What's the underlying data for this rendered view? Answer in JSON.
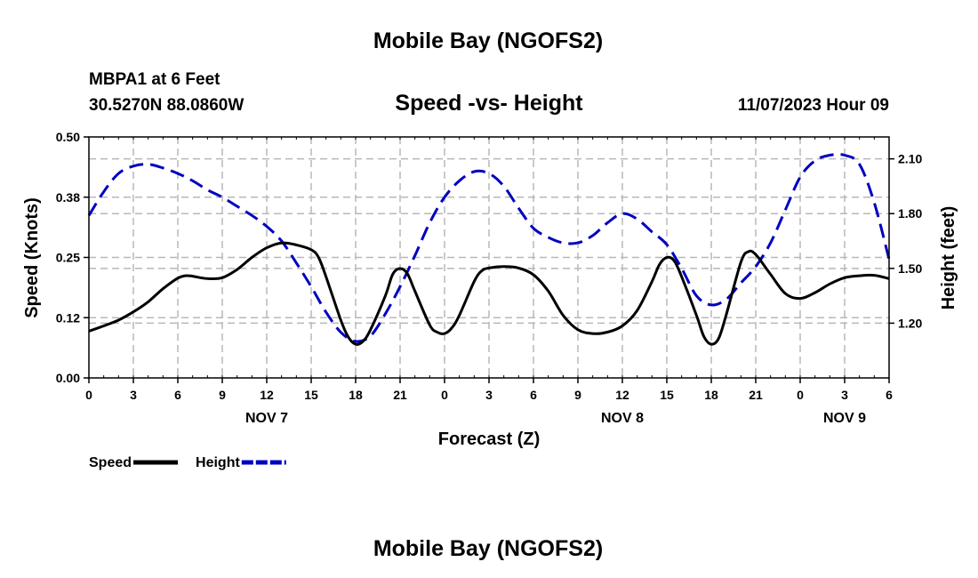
{
  "page": {
    "title_top": "Mobile Bay (NGOFS2)",
    "title_bottom": "Mobile Bay (NGOFS2)",
    "station": "MBPA1 at 6 Feet",
    "coordinates": "30.5270N  88.0860W",
    "subtitle": "Speed -vs- Height",
    "datetime": "11/07/2023 Hour 09"
  },
  "chart_data": {
    "type": "line",
    "title": "Speed -vs- Height",
    "xlabel": "Forecast (Z)",
    "ylabel_left": "Speed (Knots)",
    "ylabel_right": "Height (feet)",
    "x_unit": "hours since NOV 7 00Z",
    "xlim": [
      0,
      54
    ],
    "ylim_left": [
      0.0,
      0.5
    ],
    "ylim_right": [
      0.9,
      2.22
    ],
    "x_ticks": [
      {
        "x": 0,
        "label": "0"
      },
      {
        "x": 3,
        "label": "3"
      },
      {
        "x": 6,
        "label": "6"
      },
      {
        "x": 9,
        "label": "9"
      },
      {
        "x": 12,
        "label": "12"
      },
      {
        "x": 15,
        "label": "15"
      },
      {
        "x": 18,
        "label": "18"
      },
      {
        "x": 21,
        "label": "21"
      },
      {
        "x": 24,
        "label": "0"
      },
      {
        "x": 27,
        "label": "3"
      },
      {
        "x": 30,
        "label": "6"
      },
      {
        "x": 33,
        "label": "9"
      },
      {
        "x": 36,
        "label": "12"
      },
      {
        "x": 39,
        "label": "15"
      },
      {
        "x": 42,
        "label": "18"
      },
      {
        "x": 45,
        "label": "21"
      },
      {
        "x": 48,
        "label": "0"
      },
      {
        "x": 51,
        "label": "3"
      },
      {
        "x": 54,
        "label": "6"
      }
    ],
    "date_labels": [
      {
        "x": 12,
        "label": "NOV 7"
      },
      {
        "x": 36,
        "label": "NOV 8"
      },
      {
        "x": 51,
        "label": "NOV 9"
      }
    ],
    "y_ticks_left": [
      {
        "v": 0.0,
        "label": "0.00"
      },
      {
        "v": 0.125,
        "label": "0.12"
      },
      {
        "v": 0.25,
        "label": "0.25"
      },
      {
        "v": 0.375,
        "label": "0.38"
      },
      {
        "v": 0.5,
        "label": "0.50"
      }
    ],
    "y_ticks_right": [
      {
        "v": 1.2,
        "label": "1.20"
      },
      {
        "v": 1.5,
        "label": "1.50"
      },
      {
        "v": 1.8,
        "label": "1.80"
      },
      {
        "v": 2.1,
        "label": "2.10"
      }
    ],
    "grid": true,
    "legend_position": "bottom-left",
    "series": [
      {
        "name": "Speed",
        "axis": "left",
        "color": "#000000",
        "dash": "solid",
        "points": [
          [
            0,
            0.097
          ],
          [
            1,
            0.108
          ],
          [
            2,
            0.12
          ],
          [
            3,
            0.137
          ],
          [
            4,
            0.158
          ],
          [
            5,
            0.185
          ],
          [
            6,
            0.207
          ],
          [
            6.5,
            0.212
          ],
          [
            7,
            0.211
          ],
          [
            8,
            0.206
          ],
          [
            9,
            0.208
          ],
          [
            10,
            0.225
          ],
          [
            11,
            0.25
          ],
          [
            12,
            0.27
          ],
          [
            13,
            0.28
          ],
          [
            14,
            0.276
          ],
          [
            15,
            0.266
          ],
          [
            15.5,
            0.25
          ],
          [
            16,
            0.21
          ],
          [
            17,
            0.12
          ],
          [
            17.5,
            0.085
          ],
          [
            18,
            0.07
          ],
          [
            18.5,
            0.076
          ],
          [
            19,
            0.1
          ],
          [
            20,
            0.17
          ],
          [
            20.5,
            0.215
          ],
          [
            21,
            0.227
          ],
          [
            21.5,
            0.216
          ],
          [
            22,
            0.18
          ],
          [
            23,
            0.11
          ],
          [
            23.5,
            0.095
          ],
          [
            24,
            0.092
          ],
          [
            24.5,
            0.104
          ],
          [
            25,
            0.13
          ],
          [
            26,
            0.2
          ],
          [
            26.5,
            0.222
          ],
          [
            27,
            0.228
          ],
          [
            28,
            0.231
          ],
          [
            29,
            0.228
          ],
          [
            30,
            0.214
          ],
          [
            31,
            0.18
          ],
          [
            32,
            0.13
          ],
          [
            33,
            0.1
          ],
          [
            34,
            0.092
          ],
          [
            35,
            0.095
          ],
          [
            36,
            0.108
          ],
          [
            37,
            0.14
          ],
          [
            38,
            0.2
          ],
          [
            38.5,
            0.235
          ],
          [
            39,
            0.25
          ],
          [
            39.5,
            0.243
          ],
          [
            40,
            0.21
          ],
          [
            41,
            0.13
          ],
          [
            41.5,
            0.086
          ],
          [
            42,
            0.07
          ],
          [
            42.5,
            0.082
          ],
          [
            43,
            0.13
          ],
          [
            44,
            0.24
          ],
          [
            44.5,
            0.262
          ],
          [
            45,
            0.256
          ],
          [
            46,
            0.215
          ],
          [
            47,
            0.175
          ],
          [
            48,
            0.165
          ],
          [
            49,
            0.177
          ],
          [
            50,
            0.195
          ],
          [
            51,
            0.208
          ],
          [
            52,
            0.212
          ],
          [
            53,
            0.213
          ],
          [
            54,
            0.206
          ]
        ]
      },
      {
        "name": "Height",
        "axis": "right",
        "color": "#0000c0",
        "dash": "dashed",
        "points": [
          [
            0,
            1.79
          ],
          [
            1,
            1.92
          ],
          [
            2,
            2.02
          ],
          [
            3,
            2.06
          ],
          [
            4,
            2.07
          ],
          [
            5,
            2.05
          ],
          [
            6,
            2.02
          ],
          [
            7,
            1.98
          ],
          [
            8,
            1.93
          ],
          [
            9,
            1.89
          ],
          [
            10,
            1.84
          ],
          [
            11,
            1.79
          ],
          [
            12,
            1.73
          ],
          [
            13,
            1.65
          ],
          [
            14,
            1.53
          ],
          [
            15,
            1.4
          ],
          [
            16,
            1.26
          ],
          [
            17,
            1.15
          ],
          [
            18,
            1.1
          ],
          [
            19,
            1.13
          ],
          [
            20,
            1.25
          ],
          [
            21,
            1.4
          ],
          [
            22,
            1.57
          ],
          [
            23,
            1.75
          ],
          [
            24,
            1.89
          ],
          [
            25,
            1.98
          ],
          [
            26,
            2.03
          ],
          [
            27,
            2.02
          ],
          [
            28,
            1.95
          ],
          [
            29,
            1.83
          ],
          [
            30,
            1.72
          ],
          [
            31,
            1.67
          ],
          [
            32,
            1.64
          ],
          [
            33,
            1.64
          ],
          [
            34,
            1.68
          ],
          [
            35,
            1.75
          ],
          [
            36,
            1.8
          ],
          [
            37,
            1.77
          ],
          [
            38,
            1.7
          ],
          [
            39,
            1.63
          ],
          [
            40,
            1.5
          ],
          [
            41,
            1.35
          ],
          [
            42,
            1.3
          ],
          [
            43,
            1.33
          ],
          [
            44,
            1.42
          ],
          [
            45,
            1.51
          ],
          [
            46,
            1.64
          ],
          [
            47,
            1.82
          ],
          [
            48,
            2.0
          ],
          [
            49,
            2.09
          ],
          [
            50,
            2.12
          ],
          [
            51,
            2.12
          ],
          [
            52,
            2.07
          ],
          [
            53,
            1.86
          ],
          [
            54,
            1.55
          ]
        ]
      }
    ]
  }
}
